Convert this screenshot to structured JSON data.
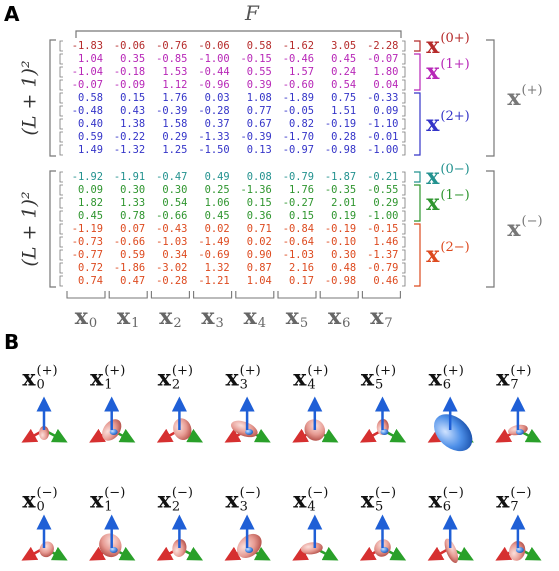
{
  "panel_a": {
    "label": "A",
    "header": "F",
    "blocks": [
      {
        "row_label": "(L + 1)²",
        "label": {
          "base": "x",
          "sup": "(+)"
        },
        "groups": [
          {
            "label": {
              "base": "x",
              "sup": "(0+)"
            },
            "color": "#b52a2a",
            "rows": [
              [
                "-1.83",
                "-0.06",
                "-0.76",
                "-0.06",
                "0.58",
                "-1.62",
                "3.05",
                "-2.28"
              ]
            ]
          },
          {
            "label": {
              "base": "x",
              "sup": "(1+)"
            },
            "color": "#b726b7",
            "rows": [
              [
                "1.04",
                "0.35",
                "-0.85",
                "-1.00",
                "-0.15",
                "-0.46",
                "0.45",
                "-0.07"
              ],
              [
                "-1.04",
                "-0.18",
                "1.53",
                "-0.44",
                "0.55",
                "1.57",
                "0.24",
                "1.80"
              ],
              [
                "-0.07",
                "-0.09",
                "1.12",
                "-0.96",
                "0.39",
                "-0.60",
                "0.54",
                "0.04"
              ]
            ]
          },
          {
            "label": {
              "base": "x",
              "sup": "(2+)"
            },
            "color": "#3434c8",
            "rows": [
              [
                "0.58",
                "0.15",
                "1.76",
                "0.03",
                "1.08",
                "-1.89",
                "0.75",
                "-0.33"
              ],
              [
                "-0.48",
                "0.43",
                "-0.39",
                "-0.28",
                "0.77",
                "-0.05",
                "1.51",
                "0.09"
              ],
              [
                "0.40",
                "1.38",
                "1.58",
                "0.37",
                "0.67",
                "0.82",
                "-0.19",
                "-1.10"
              ],
              [
                "0.59",
                "-0.22",
                "0.29",
                "-1.33",
                "-0.39",
                "-1.70",
                "0.28",
                "-0.01"
              ],
              [
                "1.49",
                "-1.32",
                "1.25",
                "-1.50",
                "0.13",
                "-0.97",
                "-0.98",
                "-1.00"
              ]
            ]
          }
        ]
      },
      {
        "row_label": "(L + 1)²",
        "label": {
          "base": "x",
          "sup": "(−)"
        },
        "groups": [
          {
            "label": {
              "base": "x",
              "sup": "(0−)"
            },
            "color": "#23928f",
            "rows": [
              [
                "-1.92",
                "-1.91",
                "-0.47",
                "0.49",
                "0.08",
                "-0.79",
                "-1.87",
                "-0.21"
              ]
            ]
          },
          {
            "label": {
              "base": "x",
              "sup": "(1−)"
            },
            "color": "#2e952e",
            "rows": [
              [
                "0.09",
                "0.30",
                "0.30",
                "0.25",
                "-1.36",
                "1.76",
                "-0.35",
                "-0.55"
              ],
              [
                "1.82",
                "1.33",
                "0.54",
                "1.06",
                "0.15",
                "-0.27",
                "2.01",
                "0.29"
              ],
              [
                "0.45",
                "0.78",
                "-0.66",
                "0.45",
                "0.36",
                "0.15",
                "0.19",
                "-1.00"
              ]
            ]
          },
          {
            "label": {
              "base": "x",
              "sup": "(2−)"
            },
            "color": "#dd4a1f",
            "rows": [
              [
                "-1.19",
                "0.07",
                "-0.43",
                "0.02",
                "0.71",
                "-0.84",
                "-0.19",
                "-0.15"
              ],
              [
                "-0.73",
                "-0.66",
                "-1.03",
                "-1.49",
                "0.02",
                "-0.64",
                "-0.10",
                "1.46"
              ],
              [
                "-0.77",
                "0.59",
                "0.34",
                "-0.69",
                "0.90",
                "-1.03",
                "0.30",
                "-1.37"
              ],
              [
                "0.72",
                "-1.86",
                "-3.02",
                "1.32",
                "0.87",
                "2.16",
                "0.48",
                "-0.79"
              ],
              [
                "0.74",
                "0.47",
                "-0.28",
                "-1.21",
                "1.04",
                "0.17",
                "-0.98",
                "0.46"
              ]
            ]
          }
        ]
      }
    ],
    "columns": [
      {
        "base": "x",
        "sub": "0"
      },
      {
        "base": "x",
        "sub": "1"
      },
      {
        "base": "x",
        "sub": "2"
      },
      {
        "base": "x",
        "sub": "3"
      },
      {
        "base": "x",
        "sub": "4"
      },
      {
        "base": "x",
        "sub": "5"
      },
      {
        "base": "x",
        "sub": "6"
      },
      {
        "base": "x",
        "sub": "7"
      }
    ]
  },
  "panel_b": {
    "label": "B",
    "rows": [
      [
        {
          "base": "x",
          "sub": "0",
          "sup": "(+)"
        },
        {
          "base": "x",
          "sub": "1",
          "sup": "(+)"
        },
        {
          "base": "x",
          "sub": "2",
          "sup": "(+)"
        },
        {
          "base": "x",
          "sub": "3",
          "sup": "(+)"
        },
        {
          "base": "x",
          "sub": "4",
          "sup": "(+)"
        },
        {
          "base": "x",
          "sub": "5",
          "sup": "(+)"
        },
        {
          "base": "x",
          "sub": "6",
          "sup": "(+)"
        },
        {
          "base": "x",
          "sub": "7",
          "sup": "(+)"
        }
      ],
      [
        {
          "base": "x",
          "sub": "0",
          "sup": "(−)"
        },
        {
          "base": "x",
          "sub": "1",
          "sup": "(−)"
        },
        {
          "base": "x",
          "sub": "2",
          "sup": "(−)"
        },
        {
          "base": "x",
          "sub": "3",
          "sup": "(−)"
        },
        {
          "base": "x",
          "sub": "4",
          "sup": "(−)"
        },
        {
          "base": "x",
          "sub": "5",
          "sup": "(−)"
        },
        {
          "base": "x",
          "sub": "6",
          "sup": "(−)"
        },
        {
          "base": "x",
          "sub": "7",
          "sup": "(−)"
        }
      ]
    ]
  }
}
